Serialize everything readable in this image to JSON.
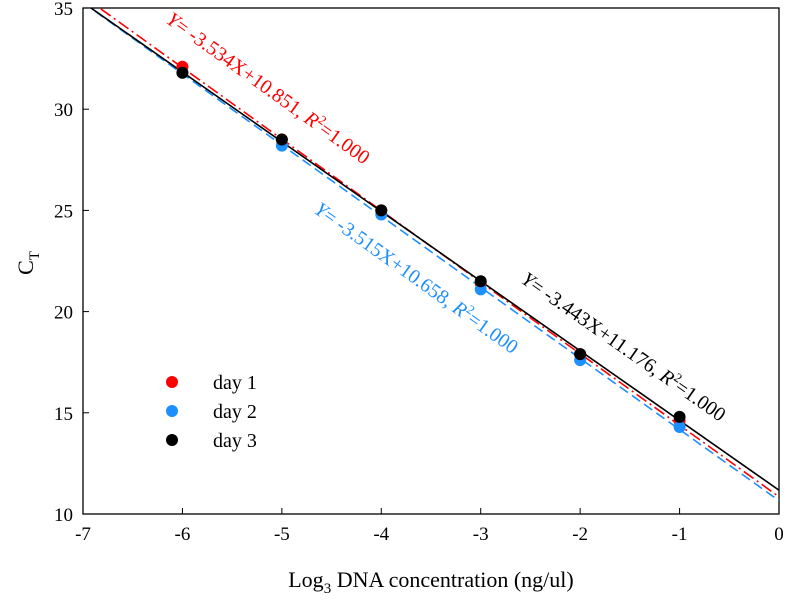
{
  "chart_data": {
    "type": "scatter",
    "title": "",
    "xlabel_main": "Log",
    "xlabel_sub": "3",
    "xlabel_rest": " DNA concentration (ng/ul)",
    "ylabel_main": "C",
    "ylabel_sub": "T",
    "xlim": [
      -7,
      0
    ],
    "ylim": [
      10,
      35
    ],
    "xticks": [
      -7,
      -6,
      -5,
      -4,
      -3,
      -2,
      -1,
      0
    ],
    "yticks": [
      10,
      15,
      20,
      25,
      30,
      35
    ],
    "grid": false,
    "legend_placement": "lower-left",
    "x": [
      -6,
      -5,
      -4,
      -3,
      -2,
      -1
    ],
    "series": [
      {
        "name": "day 1",
        "color": "#ff0000",
        "values": [
          32.1,
          28.5,
          25.0,
          21.4,
          17.9,
          14.6
        ],
        "fit": {
          "slope": -3.534,
          "intercept": 10.851,
          "dash": "12,4,2,4"
        },
        "equation": {
          "y": "Y",
          "rest": "= -3.534X+10.851, ",
          "r": "R",
          "sup": "2",
          "val": "=1.000"
        }
      },
      {
        "name": "day 2",
        "color": "#1e8fff",
        "values": [
          31.8,
          28.2,
          24.8,
          21.1,
          17.6,
          14.3
        ],
        "fit": {
          "slope": -3.515,
          "intercept": 10.658,
          "dash": "10,5"
        },
        "equation": {
          "y": "Y",
          "rest": "= -3.515X+10.658, ",
          "r": "R",
          "sup": "2",
          "val": "=1.000"
        }
      },
      {
        "name": "day 3",
        "color": "#000000",
        "values": [
          31.8,
          28.5,
          25.0,
          21.5,
          17.9,
          14.8
        ],
        "fit": {
          "slope": -3.443,
          "intercept": 11.176,
          "dash": ""
        },
        "equation": {
          "y": "Y",
          "rest": "= -3.443X+11.176, ",
          "r": "R",
          "sup": "2",
          "val": "=1.000"
        }
      }
    ]
  }
}
